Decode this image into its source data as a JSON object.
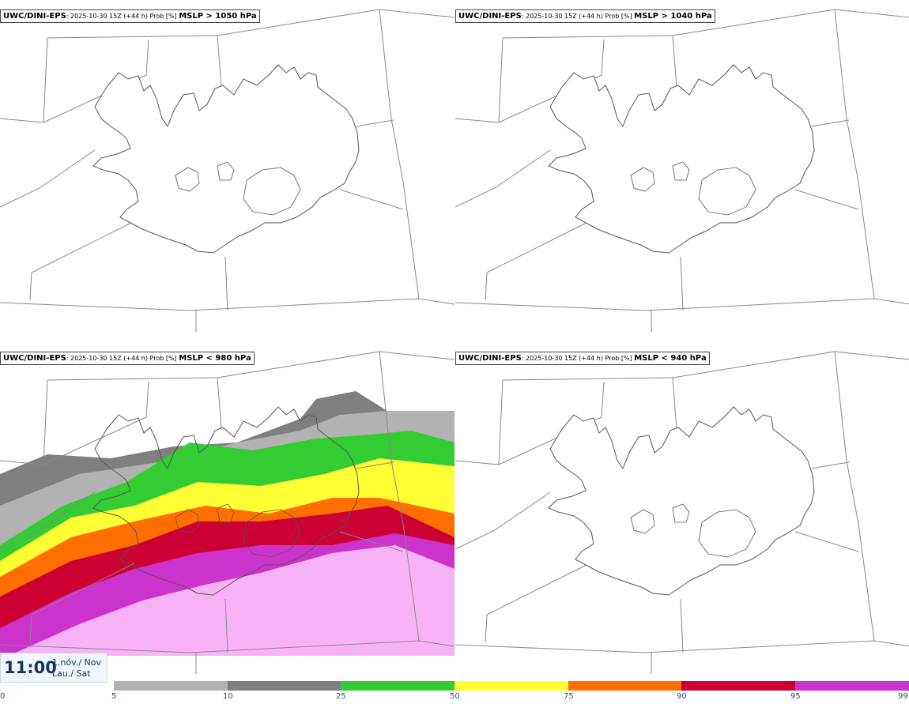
{
  "panels": [
    {
      "model": "UWC/DINI-EPS",
      "run": ": 2025-10-30 15Z (+44 h) Prob [%] ",
      "threshold": "MSLP > 1050 hPa",
      "has_field": false
    },
    {
      "model": "UWC/DINI-EPS",
      "run": ": 2025-10-30 15Z (+44 h) Prob [%] ",
      "threshold": "MSLP > 1040 hPa",
      "has_field": false
    },
    {
      "model": "UWC/DINI-EPS",
      "run": ": 2025-10-30 15Z (+44 h) Prob [%] ",
      "threshold": "MSLP < 980 hPa",
      "has_field": true
    },
    {
      "model": "UWC/DINI-EPS",
      "run": ": 2025-10-30 15Z (+44 h) Prob [%] ",
      "threshold": "MSLP < 940 hPa",
      "has_field": false
    }
  ],
  "time": {
    "clock": "11:00",
    "date_line1": "1.nóv./ Nov",
    "date_line2": "Lau./ Sat"
  },
  "legend": {
    "ticks": [
      "0",
      "5",
      "10",
      "25",
      "50",
      "75",
      "90",
      "95",
      "99"
    ],
    "colors": [
      "#ffffff",
      "#b2b2b2",
      "#7f7f7f",
      "#33cc33",
      "#ffff33",
      "#ff6f00",
      "#cc0033",
      "#cc33cc",
      "#f7b2f7"
    ]
  },
  "map": {
    "land_color": "#ffffff",
    "coast_color": "#555555",
    "border_color": "#888888"
  }
}
